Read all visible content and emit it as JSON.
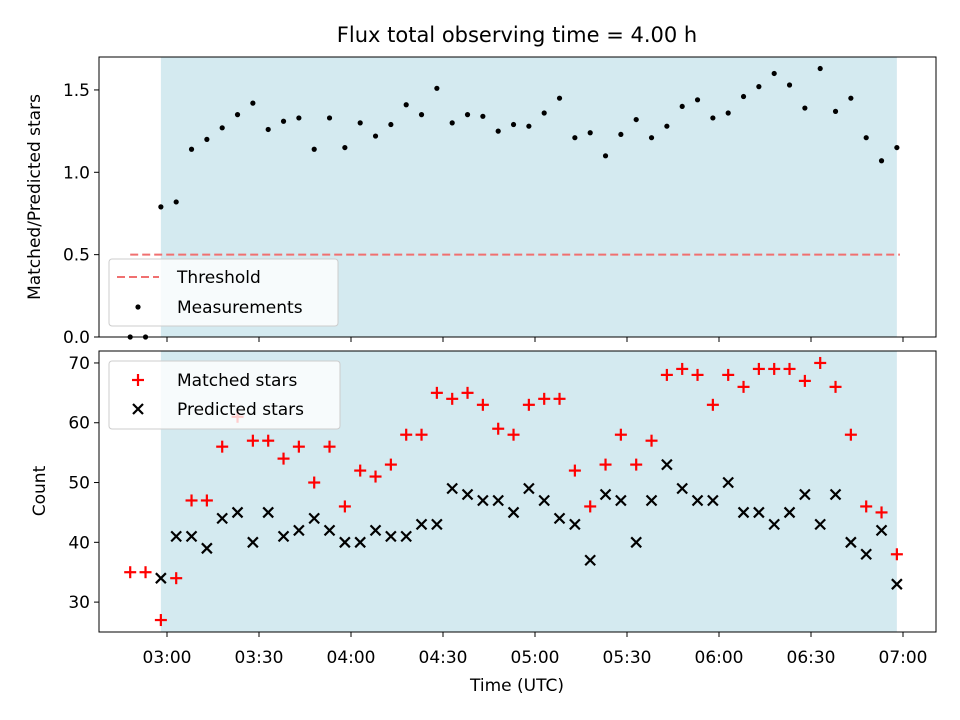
{
  "chart_data": [
    {
      "type": "scatter",
      "title": "Flux total observing time = 4.00 h",
      "xlabel": "",
      "ylabel": "Matched/Predicted stars",
      "ylim": [
        0,
        1.7
      ],
      "y_ticks": [
        "0.0",
        "0.5",
        "1.0",
        "1.5"
      ],
      "threshold": {
        "name": "Threshold",
        "value": 0.5,
        "x_range": [
          "02:48",
          "06:59"
        ],
        "color": "#f07070"
      },
      "shaded_range": {
        "start": "02:58",
        "end": "06:58",
        "color": "#d4eaf0"
      },
      "legend_position": "lower left",
      "series": [
        {
          "name": "Measurements",
          "color": "#000000",
          "marker": "dot",
          "points": [
            [
              "02:48",
              0.0
            ],
            [
              "02:53",
              0.0
            ],
            [
              "02:58",
              0.79
            ],
            [
              "03:03",
              0.82
            ],
            [
              "03:08",
              1.14
            ],
            [
              "03:13",
              1.2
            ],
            [
              "03:18",
              1.27
            ],
            [
              "03:23",
              1.35
            ],
            [
              "03:28",
              1.42
            ],
            [
              "03:33",
              1.26
            ],
            [
              "03:38",
              1.31
            ],
            [
              "03:43",
              1.33
            ],
            [
              "03:48",
              1.14
            ],
            [
              "03:53",
              1.33
            ],
            [
              "03:58",
              1.15
            ],
            [
              "04:03",
              1.3
            ],
            [
              "04:08",
              1.22
            ],
            [
              "04:13",
              1.29
            ],
            [
              "04:18",
              1.41
            ],
            [
              "04:23",
              1.35
            ],
            [
              "04:28",
              1.51
            ],
            [
              "04:33",
              1.3
            ],
            [
              "04:38",
              1.35
            ],
            [
              "04:43",
              1.34
            ],
            [
              "04:48",
              1.25
            ],
            [
              "04:53",
              1.29
            ],
            [
              "04:58",
              1.28
            ],
            [
              "05:03",
              1.36
            ],
            [
              "05:08",
              1.45
            ],
            [
              "05:13",
              1.21
            ],
            [
              "05:18",
              1.24
            ],
            [
              "05:23",
              1.1
            ],
            [
              "05:28",
              1.23
            ],
            [
              "05:33",
              1.32
            ],
            [
              "05:38",
              1.21
            ],
            [
              "05:43",
              1.28
            ],
            [
              "05:48",
              1.4
            ],
            [
              "05:53",
              1.44
            ],
            [
              "05:58",
              1.33
            ],
            [
              "06:03",
              1.36
            ],
            [
              "06:08",
              1.46
            ],
            [
              "06:13",
              1.52
            ],
            [
              "06:18",
              1.6
            ],
            [
              "06:23",
              1.53
            ],
            [
              "06:28",
              1.39
            ],
            [
              "06:33",
              1.63
            ],
            [
              "06:38",
              1.37
            ],
            [
              "06:43",
              1.45
            ],
            [
              "06:48",
              1.21
            ],
            [
              "06:53",
              1.07
            ],
            [
              "06:58",
              1.15
            ]
          ]
        }
      ]
    },
    {
      "type": "scatter",
      "title": "",
      "xlabel": "Time (UTC)",
      "ylabel": "Count",
      "ylim": [
        25,
        72
      ],
      "y_ticks": [
        "30",
        "40",
        "50",
        "60",
        "70"
      ],
      "x_ticks": [
        "03:00",
        "03:30",
        "04:00",
        "04:30",
        "05:00",
        "05:30",
        "06:00",
        "06:30",
        "07:00"
      ],
      "shaded_range": {
        "start": "02:58",
        "end": "06:58",
        "color": "#d4eaf0"
      },
      "legend_position": "upper left",
      "series": [
        {
          "name": "Matched stars",
          "color": "#ff0000",
          "marker": "plus",
          "points": [
            [
              "02:48",
              35
            ],
            [
              "02:53",
              35
            ],
            [
              "02:58",
              27
            ],
            [
              "03:03",
              34
            ],
            [
              "03:08",
              47
            ],
            [
              "03:13",
              47
            ],
            [
              "03:18",
              56
            ],
            [
              "03:23",
              61
            ],
            [
              "03:28",
              57
            ],
            [
              "03:33",
              57
            ],
            [
              "03:38",
              54
            ],
            [
              "03:43",
              56
            ],
            [
              "03:48",
              50
            ],
            [
              "03:53",
              56
            ],
            [
              "03:58",
              46
            ],
            [
              "04:03",
              52
            ],
            [
              "04:08",
              51
            ],
            [
              "04:13",
              53
            ],
            [
              "04:18",
              58
            ],
            [
              "04:23",
              58
            ],
            [
              "04:28",
              65
            ],
            [
              "04:33",
              64
            ],
            [
              "04:38",
              65
            ],
            [
              "04:43",
              63
            ],
            [
              "04:48",
              59
            ],
            [
              "04:53",
              58
            ],
            [
              "04:58",
              63
            ],
            [
              "05:03",
              64
            ],
            [
              "05:08",
              64
            ],
            [
              "05:13",
              52
            ],
            [
              "05:18",
              46
            ],
            [
              "05:23",
              53
            ],
            [
              "05:28",
              58
            ],
            [
              "05:33",
              53
            ],
            [
              "05:38",
              57
            ],
            [
              "05:43",
              68
            ],
            [
              "05:48",
              69
            ],
            [
              "05:53",
              68
            ],
            [
              "05:58",
              63
            ],
            [
              "06:03",
              68
            ],
            [
              "06:08",
              66
            ],
            [
              "06:13",
              69
            ],
            [
              "06:18",
              69
            ],
            [
              "06:23",
              69
            ],
            [
              "06:28",
              67
            ],
            [
              "06:33",
              70
            ],
            [
              "06:38",
              66
            ],
            [
              "06:43",
              58
            ],
            [
              "06:48",
              46
            ],
            [
              "06:53",
              45
            ],
            [
              "06:58",
              38
            ]
          ]
        },
        {
          "name": "Predicted stars",
          "color": "#000000",
          "marker": "x",
          "points": [
            [
              "02:58",
              34
            ],
            [
              "03:03",
              41
            ],
            [
              "03:08",
              41
            ],
            [
              "03:13",
              39
            ],
            [
              "03:18",
              44
            ],
            [
              "03:23",
              45
            ],
            [
              "03:28",
              40
            ],
            [
              "03:33",
              45
            ],
            [
              "03:38",
              41
            ],
            [
              "03:43",
              42
            ],
            [
              "03:48",
              44
            ],
            [
              "03:53",
              42
            ],
            [
              "03:58",
              40
            ],
            [
              "04:03",
              40
            ],
            [
              "04:08",
              42
            ],
            [
              "04:13",
              41
            ],
            [
              "04:18",
              41
            ],
            [
              "04:23",
              43
            ],
            [
              "04:28",
              43
            ],
            [
              "04:33",
              49
            ],
            [
              "04:38",
              48
            ],
            [
              "04:43",
              47
            ],
            [
              "04:48",
              47
            ],
            [
              "04:53",
              45
            ],
            [
              "04:58",
              49
            ],
            [
              "05:03",
              47
            ],
            [
              "05:08",
              44
            ],
            [
              "05:13",
              43
            ],
            [
              "05:18",
              37
            ],
            [
              "05:23",
              48
            ],
            [
              "05:28",
              47
            ],
            [
              "05:33",
              40
            ],
            [
              "05:38",
              47
            ],
            [
              "05:43",
              53
            ],
            [
              "05:48",
              49
            ],
            [
              "05:53",
              47
            ],
            [
              "05:58",
              47
            ],
            [
              "06:03",
              50
            ],
            [
              "06:08",
              45
            ],
            [
              "06:13",
              45
            ],
            [
              "06:18",
              43
            ],
            [
              "06:23",
              45
            ],
            [
              "06:28",
              48
            ],
            [
              "06:33",
              43
            ],
            [
              "06:38",
              48
            ],
            [
              "06:43",
              40
            ],
            [
              "06:48",
              38
            ],
            [
              "06:53",
              42
            ],
            [
              "06:58",
              33
            ]
          ]
        }
      ]
    }
  ]
}
